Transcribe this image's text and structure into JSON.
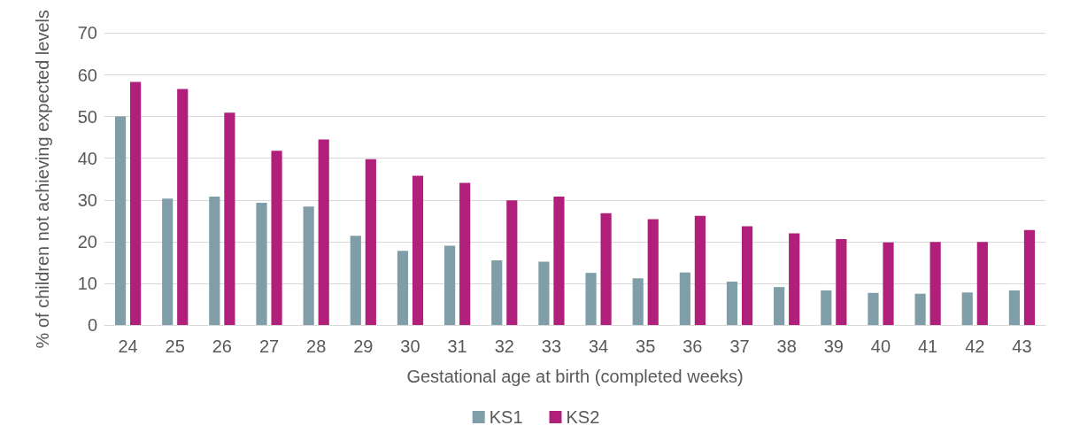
{
  "chart_data": {
    "type": "bar",
    "xlabel": "Gestational age at birth (completed weeks)",
    "ylabel": "% of children not achieving expected levels",
    "categories": [
      "24",
      "25",
      "26",
      "27",
      "28",
      "29",
      "30",
      "31",
      "32",
      "33",
      "34",
      "35",
      "36",
      "37",
      "38",
      "39",
      "40",
      "41",
      "42",
      "43"
    ],
    "series": [
      {
        "name": "KS1",
        "color": "#7f9ea8",
        "values": [
          50,
          30.3,
          30.8,
          29.3,
          28.4,
          21.4,
          17.8,
          19,
          15.5,
          15.2,
          12.5,
          11.2,
          12.6,
          10.4,
          9.1,
          8.3,
          7.7,
          7.5,
          7.8,
          8.3
        ]
      },
      {
        "name": "KS2",
        "color": "#b0207a",
        "values": [
          58.3,
          56.6,
          50.9,
          41.8,
          44.5,
          39.8,
          35.8,
          34.1,
          29.9,
          30.8,
          26.8,
          25.4,
          26.2,
          23.7,
          22,
          20.6,
          19.8,
          19.9,
          19.9,
          22.8
        ]
      }
    ],
    "ylim": [
      0,
      70
    ],
    "yticks": [
      0,
      10,
      20,
      30,
      40,
      50,
      60,
      70
    ],
    "grid": "y",
    "legend": "bottom"
  }
}
